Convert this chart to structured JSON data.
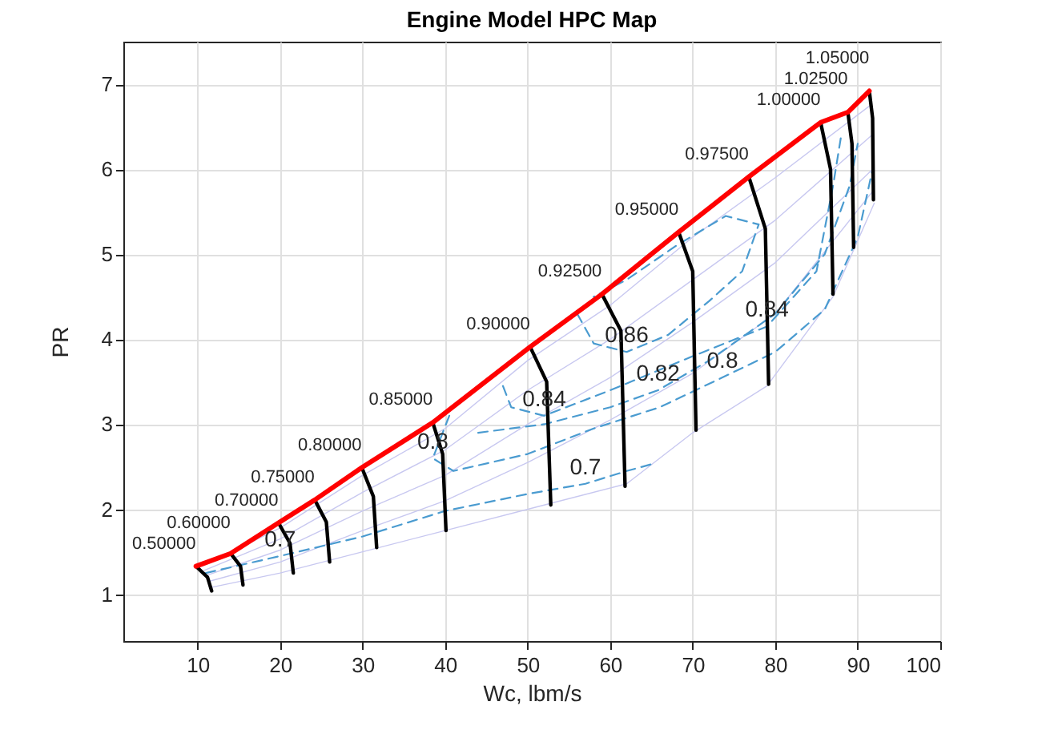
{
  "chart_data": {
    "type": "line",
    "title": "Engine Model HPC Map",
    "xlabel": "Wc, lbm/s",
    "ylabel": "PR",
    "xlim": [
      1,
      100
    ],
    "ylim": [
      0.45,
      7.5
    ],
    "xticks": [
      10,
      20,
      30,
      40,
      50,
      60,
      70,
      80,
      90,
      100
    ],
    "yticks": [
      1,
      2,
      3,
      4,
      5,
      6,
      7
    ],
    "grid": true,
    "series": [
      {
        "color": "#c8c8f0",
        "x": [
          10.5,
          20,
          30,
          40,
          50,
          60,
          70,
          80,
          91.5
        ],
        "values": [
          1.33,
          1.78,
          2.4,
          2.95,
          3.75,
          4.4,
          5.2,
          5.9,
          6.75
        ]
      },
      {
        "color": "#c8c8f0",
        "x": [
          10.8,
          20,
          30,
          40,
          50,
          60,
          70,
          80,
          91.7
        ],
        "values": [
          1.28,
          1.65,
          2.2,
          2.7,
          3.4,
          4.0,
          4.7,
          5.4,
          6.4
        ]
      },
      {
        "color": "#c8c8f0",
        "x": [
          11,
          20,
          30,
          40,
          50,
          60,
          70,
          80,
          91.8
        ],
        "values": [
          1.22,
          1.52,
          1.98,
          2.4,
          3.0,
          3.55,
          4.2,
          4.9,
          6.0
        ]
      },
      {
        "color": "#c8c8f0",
        "x": [
          11.3,
          20,
          30,
          40,
          50,
          60,
          70,
          80,
          91.9
        ],
        "values": [
          1.15,
          1.38,
          1.75,
          2.1,
          2.55,
          3.05,
          3.6,
          4.3,
          5.75
        ]
      },
      {
        "color": "#c8c8f0",
        "x": [
          11.6,
          20,
          30,
          40,
          52,
          62,
          70,
          79,
          87,
          92
        ],
        "values": [
          1.08,
          1.25,
          1.5,
          1.75,
          2.05,
          2.3,
          2.9,
          3.45,
          4.5,
          5.6
        ]
      },
      {
        "color": "#4a9bd0",
        "line_style": "dashed",
        "x": [
          11,
          20,
          30,
          40,
          50,
          57,
          62,
          65
        ],
        "values": [
          1.25,
          1.45,
          1.68,
          1.98,
          2.18,
          2.3,
          2.45,
          2.53
        ]
      },
      {
        "color": "#4a9bd0",
        "line_style": "dashed",
        "x": [
          40.5,
          38.5,
          41,
          50,
          58,
          66,
          73.6,
          80,
          86,
          90,
          91.8
        ],
        "values": [
          3.1,
          2.6,
          2.45,
          2.65,
          2.95,
          3.2,
          3.55,
          3.85,
          4.35,
          5.2,
          6.0
        ]
      },
      {
        "color": "#4a9bd0",
        "line_style": "dashed",
        "x": [
          44,
          52,
          60,
          65.8,
          72,
          80,
          86,
          89,
          90
        ],
        "values": [
          2.9,
          3.0,
          3.2,
          3.4,
          3.75,
          4.3,
          5.0,
          5.8,
          6.3
        ]
      },
      {
        "color": "#4a9bd0",
        "line_style": "dashed",
        "x": [
          47,
          48,
          52,
          60,
          70,
          79,
          85,
          87,
          88
        ],
        "values": [
          3.45,
          3.2,
          3.1,
          3.4,
          3.8,
          4.15,
          4.8,
          5.8,
          6.4
        ]
      },
      {
        "color": "#4a9bd0",
        "line_style": "dashed",
        "x": [
          56,
          58,
          62,
          67,
          72,
          76,
          78,
          74,
          68,
          62,
          58
        ],
        "values": [
          4.3,
          3.95,
          3.85,
          4.05,
          4.45,
          4.8,
          5.35,
          5.45,
          5.1,
          4.7,
          4.5
        ]
      },
      {
        "name": "0.50000",
        "color": "#000000",
        "x": [
          9.8,
          11.2,
          11.7
        ],
        "values": [
          1.33,
          1.2,
          1.04
        ]
      },
      {
        "name": "0.60000",
        "color": "#000000",
        "x": [
          14.0,
          15.2,
          15.5
        ],
        "values": [
          1.48,
          1.33,
          1.11
        ]
      },
      {
        "name": "0.70000",
        "color": "#000000",
        "x": [
          19.8,
          21.2,
          21.6
        ],
        "values": [
          1.84,
          1.6,
          1.25
        ]
      },
      {
        "name": "0.75000",
        "color": "#000000",
        "x": [
          24.2,
          25.6,
          26.0
        ],
        "values": [
          2.11,
          1.85,
          1.38
        ]
      },
      {
        "name": "0.80000",
        "color": "#000000",
        "x": [
          29.9,
          31.3,
          31.7
        ],
        "values": [
          2.49,
          2.15,
          1.55
        ]
      },
      {
        "name": "0.85000",
        "color": "#000000",
        "x": [
          38.5,
          39.7,
          40.1
        ],
        "values": [
          3.02,
          2.65,
          1.75
        ]
      },
      {
        "name": "0.90000",
        "color": "#000000",
        "x": [
          50.3,
          52.3,
          52.8
        ],
        "values": [
          3.91,
          3.5,
          2.05
        ]
      },
      {
        "name": "0.92500",
        "color": "#000000",
        "x": [
          59.0,
          61.3,
          61.8
        ],
        "values": [
          4.53,
          4.1,
          2.27
        ]
      },
      {
        "name": "0.95000",
        "color": "#000000",
        "x": [
          68.3,
          70.0,
          70.4
        ],
        "values": [
          5.26,
          4.8,
          2.93
        ]
      },
      {
        "name": "0.97500",
        "color": "#000000",
        "x": [
          76.8,
          78.8,
          79.2
        ],
        "values": [
          5.91,
          5.3,
          3.47
        ]
      },
      {
        "name": "1.00000",
        "color": "#000000",
        "x": [
          85.5,
          86.7,
          87.0
        ],
        "values": [
          6.55,
          6.0,
          4.53
        ]
      },
      {
        "name": "1.02500",
        "color": "#000000",
        "x": [
          88.8,
          89.3,
          89.5
        ],
        "values": [
          6.67,
          6.3,
          5.08
        ]
      },
      {
        "name": "1.05000",
        "color": "#000000",
        "x": [
          91.4,
          91.8,
          91.9
        ],
        "values": [
          6.92,
          6.6,
          5.64
        ]
      },
      {
        "color": "#ff0000",
        "x": [
          9.8,
          14.0,
          19.8,
          24.2,
          29.9,
          38.5,
          50.3,
          59.0,
          68.3,
          76.8,
          85.5,
          88.8,
          91.4
        ],
        "values": [
          1.33,
          1.48,
          1.84,
          2.11,
          2.49,
          3.02,
          3.91,
          4.53,
          5.26,
          5.91,
          6.55,
          6.67,
          6.92
        ]
      }
    ],
    "annotations": [
      {
        "text": "0.7",
        "x": 20,
        "y": 1.45
      },
      {
        "text": "0.7",
        "x": 57,
        "y": 2.3
      },
      {
        "text": "0.8",
        "x": 38.5,
        "y": 2.6
      },
      {
        "text": "0.8",
        "x": 73.6,
        "y": 3.55
      },
      {
        "text": "0.82",
        "x": 65.8,
        "y": 3.4
      },
      {
        "text": "0.84",
        "x": 52,
        "y": 3.1
      },
      {
        "text": "0.84",
        "x": 79,
        "y": 4.15
      },
      {
        "text": "0.86",
        "x": 62,
        "y": 3.85
      }
    ]
  }
}
